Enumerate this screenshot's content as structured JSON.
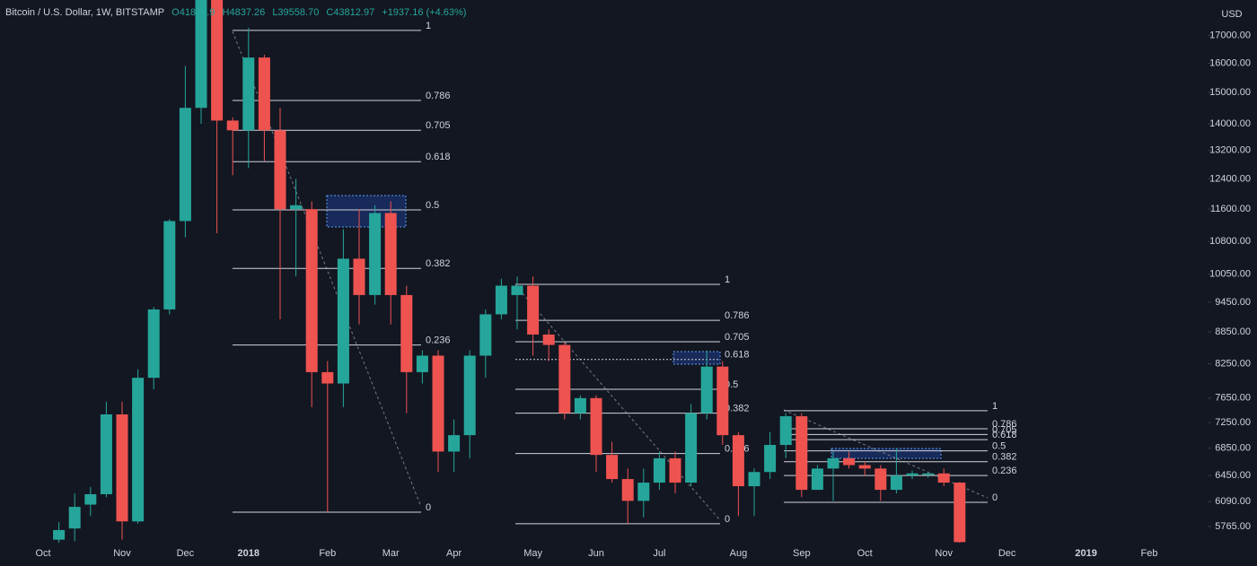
{
  "chart_data": {
    "type": "candlestick",
    "title": "Bitcoin / U.S. Dollar, 1W, BITSTAMP",
    "ohlc_labels": [
      "O41853.9",
      "H4837.26",
      "L39558.70",
      "C43812.97",
      "+1937.16 (+4.63%)"
    ],
    "currency": "USD",
    "categories": [
      "Oct",
      null,
      null,
      null,
      null,
      "Nov",
      null,
      null,
      null,
      "Dec",
      null,
      null,
      null,
      "2018",
      null,
      null,
      null,
      null,
      "Feb",
      null,
      null,
      null,
      "Mar",
      null,
      null,
      null,
      "Apr",
      null,
      null,
      null,
      null,
      "May",
      null,
      null,
      null,
      "Jun",
      null,
      null,
      null,
      "Jul",
      null,
      null,
      null,
      null,
      "Aug",
      null,
      null,
      null,
      "Sep",
      null,
      null,
      null,
      "Oct",
      null,
      null,
      null,
      null,
      "Nov",
      null,
      null,
      null,
      "Dec",
      null,
      null,
      null,
      null,
      "2019",
      null,
      null,
      null,
      "Feb"
    ],
    "open": [
      null,
      5600,
      5740,
      6050,
      6190,
      7380,
      5830,
      8000,
      9300,
      11300,
      14500,
      19100,
      14100,
      13800,
      16200,
      13800,
      11600,
      11600,
      8100,
      7900,
      10400,
      9600,
      11500,
      9600,
      8100,
      8400,
      6800,
      7050,
      8400,
      9200,
      9600,
      9800,
      8800,
      8600,
      7400,
      7650,
      6750,
      6400,
      6100,
      6350,
      6700,
      6350,
      7400,
      8200,
      7050,
      6300,
      6500,
      6900,
      7350,
      6250,
      6550,
      6700,
      6600,
      6550,
      6250,
      6450,
      6460,
      6480,
      6350,
      null,
      null,
      null,
      null,
      null,
      null,
      null,
      null,
      null,
      null,
      null,
      null
    ],
    "high": [
      null,
      5820,
      6200,
      6290,
      7590,
      7590,
      8150,
      9350,
      11350,
      15900,
      19660,
      19200,
      14200,
      17300,
      16300,
      14500,
      12400,
      11800,
      8300,
      11100,
      11600,
      11700,
      11800,
      9800,
      8500,
      8500,
      7300,
      8500,
      9300,
      9950,
      10000,
      10000,
      8900,
      8650,
      7700,
      7700,
      6950,
      6550,
      6550,
      6800,
      6800,
      7550,
      8500,
      8300,
      7100,
      6550,
      7100,
      7400,
      7400,
      6600,
      6800,
      6800,
      6650,
      6600,
      6850,
      6520,
      6500,
      6550,
      6360,
      null,
      null,
      null,
      null,
      null,
      null,
      null,
      null,
      null,
      null,
      null,
      null
    ],
    "low": [
      null,
      5560,
      5580,
      5900,
      6150,
      5600,
      5800,
      7800,
      9200,
      10900,
      14000,
      11000,
      12500,
      12700,
      12900,
      9100,
      10000,
      7500,
      5950,
      7500,
      9000,
      9400,
      9000,
      7400,
      7900,
      6500,
      6500,
      6700,
      8000,
      9100,
      8900,
      8400,
      8300,
      7300,
      7300,
      6500,
      6350,
      5800,
      5880,
      6250,
      6200,
      6300,
      7300,
      6900,
      5900,
      5900,
      6400,
      6700,
      6150,
      6250,
      6100,
      6550,
      6450,
      6100,
      6200,
      6400,
      6420,
      6300,
      5450,
      null,
      null,
      null,
      null,
      null,
      null,
      null,
      null,
      null,
      null,
      null,
      null
    ],
    "close": [
      null,
      5720,
      6020,
      6190,
      7380,
      5830,
      8000,
      9300,
      11300,
      14500,
      19100,
      14100,
      13800,
      16200,
      13800,
      11600,
      11700,
      8100,
      7900,
      10400,
      9600,
      11500,
      9600,
      8100,
      8400,
      6800,
      7050,
      8400,
      9200,
      9800,
      9800,
      8800,
      8600,
      7400,
      7650,
      6750,
      6400,
      6100,
      6350,
      6700,
      6350,
      7400,
      8200,
      7050,
      6300,
      6500,
      6900,
      7350,
      6250,
      6550,
      6700,
      6600,
      6550,
      6250,
      6450,
      6480,
      6480,
      6350,
      5570,
      null,
      null,
      null,
      null,
      null,
      null,
      null,
      null,
      null,
      null,
      null,
      null
    ],
    "up_color": "#26a69a",
    "down_color": "#ef5350",
    "log_scale": true,
    "ylim": [
      5563,
      18390
    ],
    "yticks": [
      {
        "value": 17000,
        "label": "17000.00"
      },
      {
        "value": 16000,
        "label": "16000.00"
      },
      {
        "value": 15000,
        "label": "15000.00"
      },
      {
        "value": 14000,
        "label": "14000.00"
      },
      {
        "value": 13200,
        "label": "13200.00"
      },
      {
        "value": 12400,
        "label": "12400.00"
      },
      {
        "value": 11600,
        "label": "11600.00"
      },
      {
        "value": 10800,
        "label": "10800.00"
      },
      {
        "value": 10050,
        "label": "10050.00"
      },
      {
        "value": 9450,
        "label": "9450.00"
      },
      {
        "value": 8850,
        "label": "8850.00"
      },
      {
        "value": 8250,
        "label": "8250.00"
      },
      {
        "value": 7650,
        "label": "7650.00"
      },
      {
        "value": 7250,
        "label": "7250.00"
      },
      {
        "value": 6850,
        "label": "6850.00"
      },
      {
        "value": 6450,
        "label": "6450.00"
      },
      {
        "value": 6090,
        "label": "6090.00"
      },
      {
        "value": 5765,
        "label": "5765.00"
      }
    ],
    "fib_levels": [
      [
        {
          "value": 17200,
          "label": "1"
        },
        {
          "value": 14740,
          "label": "0.786"
        },
        {
          "value": 13800,
          "label": "0.705"
        },
        {
          "value": 12880,
          "label": "0.618"
        },
        {
          "value": 11580,
          "label": "0.5"
        },
        {
          "value": 10180,
          "label": "0.382"
        },
        {
          "value": 8600,
          "label": "0.236"
        },
        {
          "value": 5950,
          "label": "0"
        }
      ],
      [
        {
          "value": 9830,
          "label": "1"
        },
        {
          "value": 9080,
          "label": "0.786"
        },
        {
          "value": 8660,
          "label": "0.705"
        },
        {
          "value": 8330,
          "label": "0.618"
        },
        {
          "value": 7800,
          "label": "0.5"
        },
        {
          "value": 7400,
          "label": "0.382"
        },
        {
          "value": 6770,
          "label": "0.236"
        },
        {
          "value": 5800,
          "label": "0"
        }
      ],
      [
        {
          "value": 7440,
          "label": "1"
        },
        {
          "value": 7150,
          "label": "0.786"
        },
        {
          "value": 7060,
          "label": "0.705"
        },
        {
          "value": 6980,
          "label": "0.618"
        },
        {
          "value": 6810,
          "label": "0.5"
        },
        {
          "value": 6650,
          "label": "0.382"
        },
        {
          "value": 6450,
          "label": "0.236"
        },
        {
          "value": 6080,
          "label": "0"
        }
      ]
    ]
  }
}
